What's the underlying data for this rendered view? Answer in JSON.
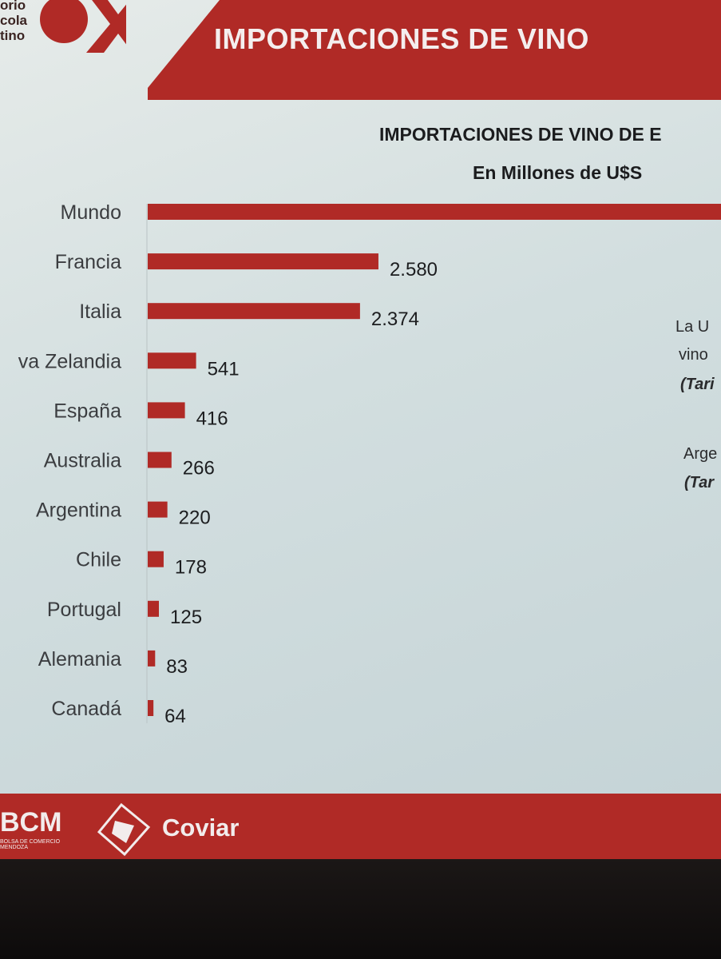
{
  "slide": {
    "title": "IMPORTACIONES DE VINO",
    "logo_lines": [
      "orio",
      "cola",
      "tino"
    ]
  },
  "chart_data": {
    "type": "bar",
    "orientation": "horizontal",
    "title": "IMPORTACIONES DE VINO DE E",
    "subtitle": "En Millones de U$S",
    "categories": [
      "Mundo",
      "Francia",
      "Italia",
      "va Zelandia",
      "España",
      "Australia",
      "Argentina",
      "Chile",
      "Portugal",
      "Alemania",
      "Canadá"
    ],
    "values": [
      null,
      2580,
      2374,
      541,
      416,
      266,
      220,
      178,
      125,
      83,
      64
    ],
    "value_labels": [
      "",
      "2.580",
      "2.374",
      "541",
      "416",
      "266",
      "220",
      "178",
      "125",
      "83",
      "64"
    ],
    "bar_color": "#b02a26",
    "legend": "none",
    "grid": false
  },
  "side_notes": [
    "La U",
    "vino",
    "(Tari",
    "Arge",
    "(Tar"
  ],
  "footer": {
    "left_brand": "BCM",
    "left_brand_sub": "BOLSA DE COMERCIO MENDOZA",
    "right_brand": "Coviar"
  },
  "colors": {
    "accent": "#b02a26",
    "background": "#d2dedf",
    "text": "#1b1c1e"
  }
}
